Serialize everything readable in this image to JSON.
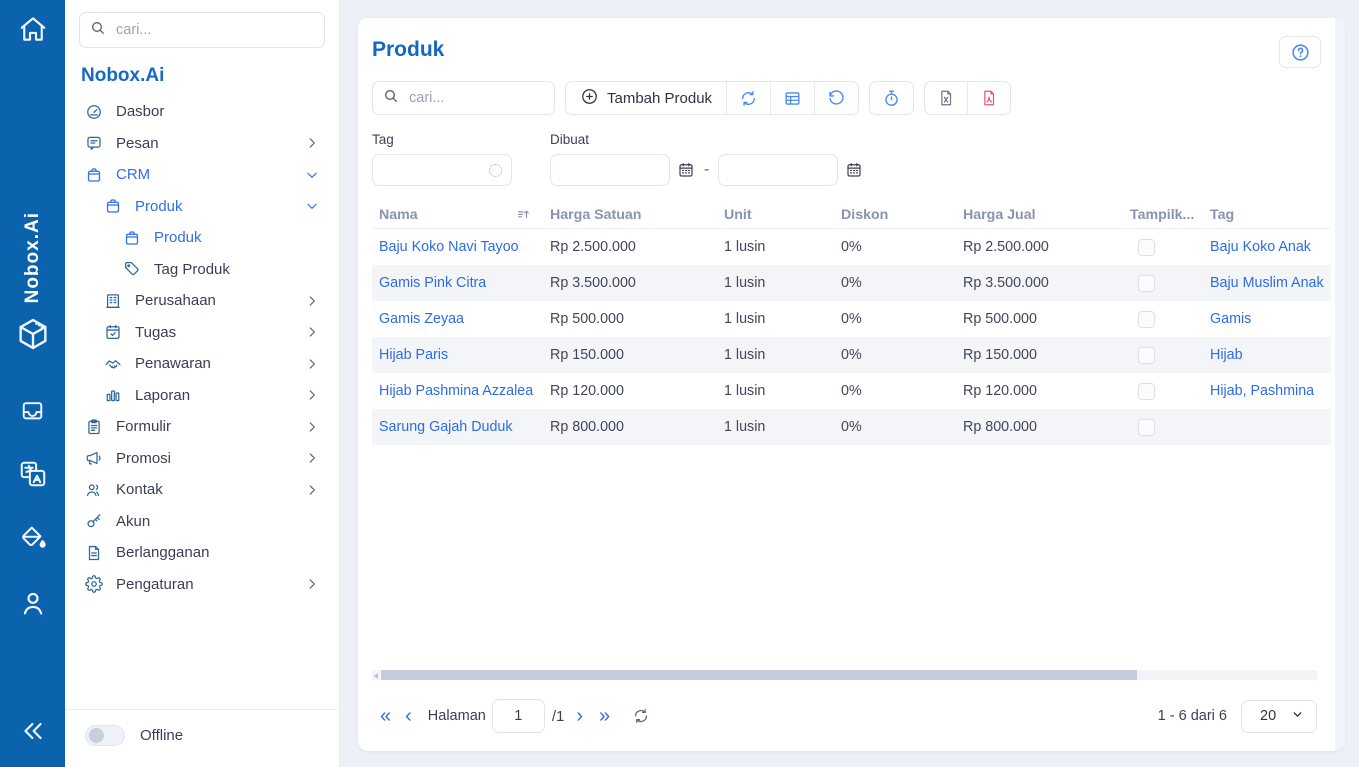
{
  "rail": {
    "vertical_text": "Nobox.Ai",
    "icons": [
      "home",
      "nobox-logo",
      "inbox",
      "translate",
      "ink-drop",
      "user",
      "collapse"
    ]
  },
  "sidebar": {
    "search_placeholder": "cari...",
    "title": "Nobox.Ai",
    "items": [
      {
        "label": "Dasbor",
        "icon": "dashboard",
        "indent": 0,
        "chevron": "none",
        "active": false
      },
      {
        "label": "Pesan",
        "icon": "chat",
        "indent": 0,
        "chevron": "right",
        "active": false
      },
      {
        "label": "CRM",
        "icon": "bag",
        "indent": 0,
        "chevron": "down",
        "active": true
      },
      {
        "label": "Produk",
        "icon": "bag",
        "indent": 1,
        "chevron": "down",
        "active": true
      },
      {
        "label": "Produk",
        "icon": "bag",
        "indent": 2,
        "chevron": "none",
        "active": true
      },
      {
        "label": "Tag Produk",
        "icon": "tag",
        "indent": 2,
        "chevron": "none",
        "active": false
      },
      {
        "label": "Perusahaan",
        "icon": "building",
        "indent": 1,
        "chevron": "right",
        "active": false
      },
      {
        "label": "Tugas",
        "icon": "calendar-check",
        "indent": 1,
        "chevron": "right",
        "active": false
      },
      {
        "label": "Penawaran",
        "icon": "handshake",
        "indent": 1,
        "chevron": "right",
        "active": false
      },
      {
        "label": "Laporan",
        "icon": "bar-chart",
        "indent": 1,
        "chevron": "right",
        "active": false
      },
      {
        "label": "Formulir",
        "icon": "clipboard",
        "indent": 0,
        "chevron": "right",
        "active": false
      },
      {
        "label": "Promosi",
        "icon": "megaphone",
        "indent": 0,
        "chevron": "right",
        "active": false
      },
      {
        "label": "Kontak",
        "icon": "users",
        "indent": 0,
        "chevron": "right",
        "active": false
      },
      {
        "label": "Akun",
        "icon": "key",
        "indent": 0,
        "chevron": "none",
        "active": false
      },
      {
        "label": "Berlangganan",
        "icon": "file-text",
        "indent": 0,
        "chevron": "none",
        "active": false
      },
      {
        "label": "Pengaturan",
        "icon": "gear",
        "indent": 0,
        "chevron": "right",
        "active": false
      }
    ],
    "offline_label": "Offline",
    "offline_state": "off"
  },
  "main": {
    "title": "Produk",
    "toolbar": {
      "search_placeholder": "cari...",
      "add_button": "Tambah Produk",
      "icon_buttons": [
        "refresh",
        "table",
        "undo",
        "stopwatch",
        "file-excel",
        "file-pdf"
      ]
    },
    "filters": {
      "tag_label": "Tag",
      "created_label": "Dibuat",
      "range_separator": "-"
    },
    "table": {
      "columns": [
        "Nama",
        "Harga Satuan",
        "Unit",
        "Diskon",
        "Harga Jual",
        "Tampilk...",
        "Tag"
      ],
      "rows": [
        {
          "nama": "Baju Koko Navi Tayoo",
          "harga_satuan": "Rp 2.500.000",
          "unit": "1 lusin",
          "diskon": "0%",
          "harga_jual": "Rp 2.500.000",
          "tampilkan_checked": false,
          "tag": "Baju Koko Anak"
        },
        {
          "nama": "Gamis Pink Citra",
          "harga_satuan": "Rp 3.500.000",
          "unit": "1 lusin",
          "diskon": "0%",
          "harga_jual": "Rp 3.500.000",
          "tampilkan_checked": false,
          "tag": "Baju Muslim Anak"
        },
        {
          "nama": "Gamis Zeyaa",
          "harga_satuan": "Rp 500.000",
          "unit": "1 lusin",
          "diskon": "0%",
          "harga_jual": "Rp 500.000",
          "tampilkan_checked": false,
          "tag": "Gamis"
        },
        {
          "nama": "Hijab Paris",
          "harga_satuan": "Rp 150.000",
          "unit": "1 lusin",
          "diskon": "0%",
          "harga_jual": "Rp 150.000",
          "tampilkan_checked": false,
          "tag": "Hijab"
        },
        {
          "nama": "Hijab Pashmina Azzalea",
          "harga_satuan": "Rp 120.000",
          "unit": "1 lusin",
          "diskon": "0%",
          "harga_jual": "Rp 120.000",
          "tampilkan_checked": false,
          "tag": "Hijab, Pashmina"
        },
        {
          "nama": "Sarung Gajah Duduk",
          "harga_satuan": "Rp 800.000",
          "unit": "1 lusin",
          "diskon": "0%",
          "harga_jual": "Rp 800.000",
          "tampilkan_checked": false,
          "tag": ""
        }
      ]
    },
    "pagination": {
      "page_label": "Halaman",
      "page_value": "1",
      "total_pages": "/1",
      "range_text": "1 - 6 dari 6",
      "page_size": "20"
    }
  },
  "colors": {
    "rail_blue": "#0b63ae",
    "brand_blue": "#1568c5",
    "link_blue": "#2b6ce8",
    "toolbar_icon_blue": "#4d87f0",
    "pdf_pink": "#e0547c",
    "excel_gray": "#6e7582",
    "header_gray_blue": "#8993af",
    "stripe": "#f4f5f8",
    "main_bg": "#edf1f7"
  }
}
